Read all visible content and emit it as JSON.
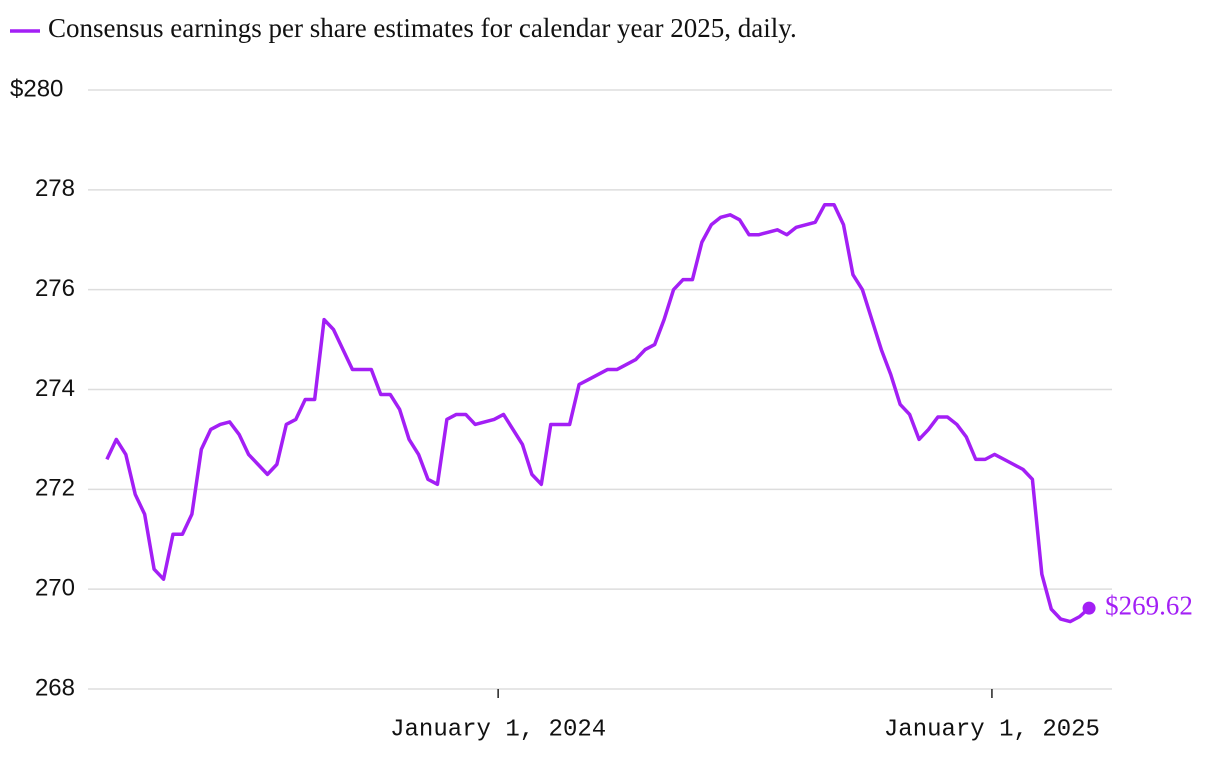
{
  "chart_data": {
    "type": "line",
    "x": [
      "2023-03-17",
      "2023-03-24",
      "2023-03-31",
      "2023-04-07",
      "2023-04-14",
      "2023-04-21",
      "2023-04-28",
      "2023-05-05",
      "2023-05-12",
      "2023-05-19",
      "2023-05-26",
      "2023-06-02",
      "2023-06-09",
      "2023-06-16",
      "2023-06-23",
      "2023-06-30",
      "2023-07-07",
      "2023-07-14",
      "2023-07-21",
      "2023-07-28",
      "2023-08-04",
      "2023-08-11",
      "2023-08-18",
      "2023-08-25",
      "2023-09-01",
      "2023-09-08",
      "2023-09-15",
      "2023-09-22",
      "2023-09-29",
      "2023-10-06",
      "2023-10-13",
      "2023-10-20",
      "2023-10-27",
      "2023-11-03",
      "2023-11-10",
      "2023-11-17",
      "2023-11-24",
      "2023-12-01",
      "2023-12-08",
      "2023-12-15",
      "2023-12-22",
      "2023-12-29",
      "2024-01-05",
      "2024-01-12",
      "2024-01-19",
      "2024-01-26",
      "2024-02-02",
      "2024-02-09",
      "2024-02-16",
      "2024-02-23",
      "2024-03-01",
      "2024-03-08",
      "2024-03-15",
      "2024-03-22",
      "2024-03-29",
      "2024-04-05",
      "2024-04-12",
      "2024-04-19",
      "2024-04-26",
      "2024-05-03",
      "2024-05-10",
      "2024-05-17",
      "2024-05-24",
      "2024-05-31",
      "2024-06-07",
      "2024-06-14",
      "2024-06-21",
      "2024-06-28",
      "2024-07-05",
      "2024-07-12",
      "2024-07-19",
      "2024-07-26",
      "2024-08-02",
      "2024-08-09",
      "2024-08-16",
      "2024-08-23",
      "2024-08-30",
      "2024-09-06",
      "2024-09-13",
      "2024-09-20",
      "2024-09-27",
      "2024-10-04",
      "2024-10-11",
      "2024-10-18",
      "2024-10-25",
      "2024-11-01",
      "2024-11-08",
      "2024-11-15",
      "2024-11-22",
      "2024-11-29",
      "2024-12-06",
      "2024-12-13",
      "2024-12-20",
      "2024-12-27",
      "2025-01-03",
      "2025-01-10",
      "2025-01-17",
      "2025-01-24",
      "2025-01-31",
      "2025-02-07",
      "2025-02-14",
      "2025-02-21",
      "2025-02-28",
      "2025-03-07",
      "2025-03-14"
    ],
    "series": [
      {
        "name": "Consensus earnings per share estimates for calendar year 2025, daily.",
        "color": "#a31ff5",
        "values": [
          272.6,
          273.0,
          272.7,
          271.9,
          271.5,
          270.4,
          270.2,
          271.1,
          271.1,
          271.5,
          272.8,
          273.2,
          273.3,
          273.35,
          273.1,
          272.7,
          272.5,
          272.3,
          272.5,
          273.3,
          273.4,
          273.8,
          273.8,
          275.4,
          275.2,
          274.8,
          274.4,
          274.4,
          274.4,
          273.9,
          273.9,
          273.6,
          273.0,
          272.7,
          272.2,
          272.1,
          273.4,
          273.5,
          273.5,
          273.3,
          273.35,
          273.4,
          273.5,
          273.2,
          272.9,
          272.3,
          272.1,
          273.3,
          273.3,
          273.3,
          274.1,
          274.2,
          274.3,
          274.4,
          274.4,
          274.5,
          274.6,
          274.8,
          274.9,
          275.4,
          276.0,
          276.2,
          276.2,
          276.95,
          277.3,
          277.45,
          277.5,
          277.4,
          277.1,
          277.1,
          277.15,
          277.2,
          277.1,
          277.25,
          277.3,
          277.35,
          277.7,
          277.7,
          277.3,
          276.3,
          276.0,
          275.4,
          274.8,
          274.3,
          273.7,
          273.5,
          273.0,
          273.2,
          273.45,
          273.45,
          273.3,
          273.05,
          272.6,
          272.6,
          272.7,
          272.6,
          272.5,
          272.4,
          272.2,
          270.3,
          269.6,
          269.4,
          269.35,
          269.45,
          269.62
        ]
      }
    ],
    "annotations": [
      {
        "x": "2025-03-14",
        "y": 269.62,
        "text": "$269.62"
      }
    ],
    "xlim": [
      "2023-03-03",
      "2025-03-31"
    ],
    "xticks": [
      {
        "value": "2024-01-01",
        "label": "January 1, 2024"
      },
      {
        "value": "2025-01-01",
        "label": "January 1, 2025"
      }
    ],
    "ylim": [
      268,
      280
    ],
    "yticks": [
      268,
      270,
      272,
      274,
      276,
      278,
      {
        "value": 280,
        "label": "$280"
      }
    ],
    "grid": true,
    "legend": "top-left"
  }
}
